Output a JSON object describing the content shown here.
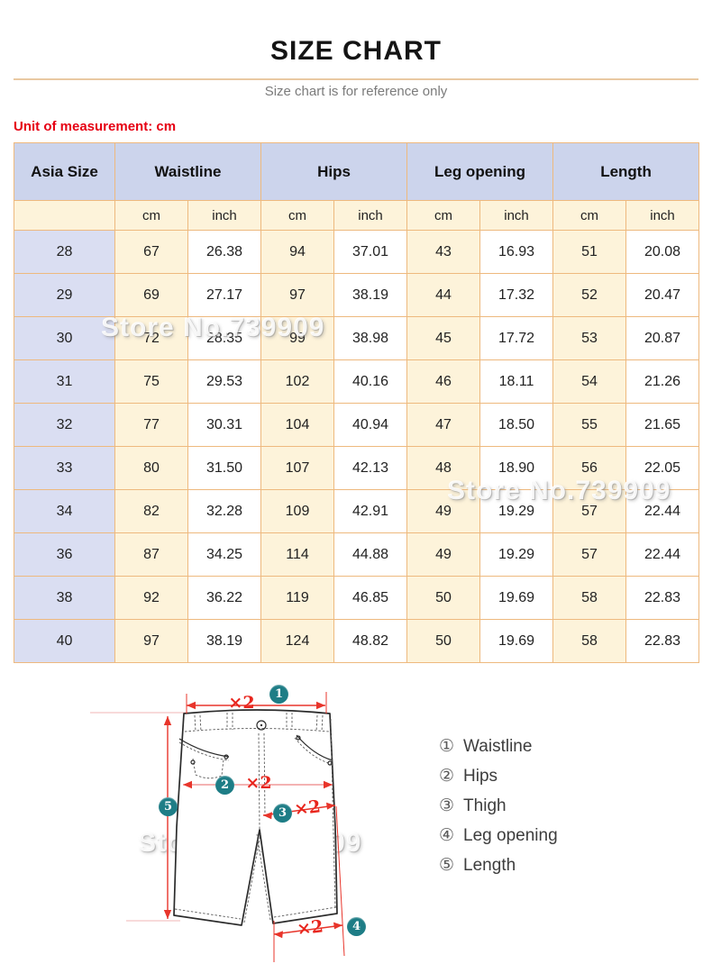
{
  "header": {
    "title": "SIZE CHART",
    "subtitle": "Size chart is for reference only",
    "unit_note": "Unit of measurement: cm"
  },
  "table": {
    "col_groups": [
      "Asia Size",
      "Waistline",
      "Hips",
      "Leg opening",
      "Length"
    ],
    "sub_headers": [
      "cm",
      "inch",
      "cm",
      "inch",
      "cm",
      "inch",
      "cm",
      "inch"
    ],
    "rows": [
      {
        "size": "28",
        "values": [
          "67",
          "26.38",
          "94",
          "37.01",
          "43",
          "16.93",
          "51",
          "20.08"
        ]
      },
      {
        "size": "29",
        "values": [
          "69",
          "27.17",
          "97",
          "38.19",
          "44",
          "17.32",
          "52",
          "20.47"
        ]
      },
      {
        "size": "30",
        "values": [
          "72",
          "28.35",
          "99",
          "38.98",
          "45",
          "17.72",
          "53",
          "20.87"
        ]
      },
      {
        "size": "31",
        "values": [
          "75",
          "29.53",
          "102",
          "40.16",
          "46",
          "18.11",
          "54",
          "21.26"
        ]
      },
      {
        "size": "32",
        "values": [
          "77",
          "30.31",
          "104",
          "40.94",
          "47",
          "18.50",
          "55",
          "21.65"
        ]
      },
      {
        "size": "33",
        "values": [
          "80",
          "31.50",
          "107",
          "42.13",
          "48",
          "18.90",
          "56",
          "22.05"
        ]
      },
      {
        "size": "34",
        "values": [
          "82",
          "32.28",
          "109",
          "42.91",
          "49",
          "19.29",
          "57",
          "22.44"
        ]
      },
      {
        "size": "36",
        "values": [
          "87",
          "34.25",
          "114",
          "44.88",
          "49",
          "19.29",
          "57",
          "22.44"
        ]
      },
      {
        "size": "38",
        "values": [
          "92",
          "36.22",
          "119",
          "46.85",
          "50",
          "19.69",
          "58",
          "22.83"
        ]
      },
      {
        "size": "40",
        "values": [
          "97",
          "38.19",
          "124",
          "48.82",
          "50",
          "19.69",
          "58",
          "22.83"
        ]
      }
    ]
  },
  "diagram": {
    "multiplier_label": "×2",
    "markers": [
      "1",
      "2",
      "3",
      "4",
      "5"
    ],
    "legend": [
      {
        "num": "①",
        "label": "Waistline"
      },
      {
        "num": "②",
        "label": "Hips"
      },
      {
        "num": "③",
        "label": "Thigh"
      },
      {
        "num": "④",
        "label": "Leg opening"
      },
      {
        "num": "⑤",
        "label": "Length"
      }
    ]
  },
  "watermark": {
    "text": "Store No.739909"
  },
  "colors": {
    "accent_red": "#e60013",
    "border_orange": "#eeb97e",
    "header_blue": "#ccd4ec",
    "size_col_blue": "#dadef2",
    "cream": "#fdf3da",
    "teal_marker": "#1e7d86"
  }
}
